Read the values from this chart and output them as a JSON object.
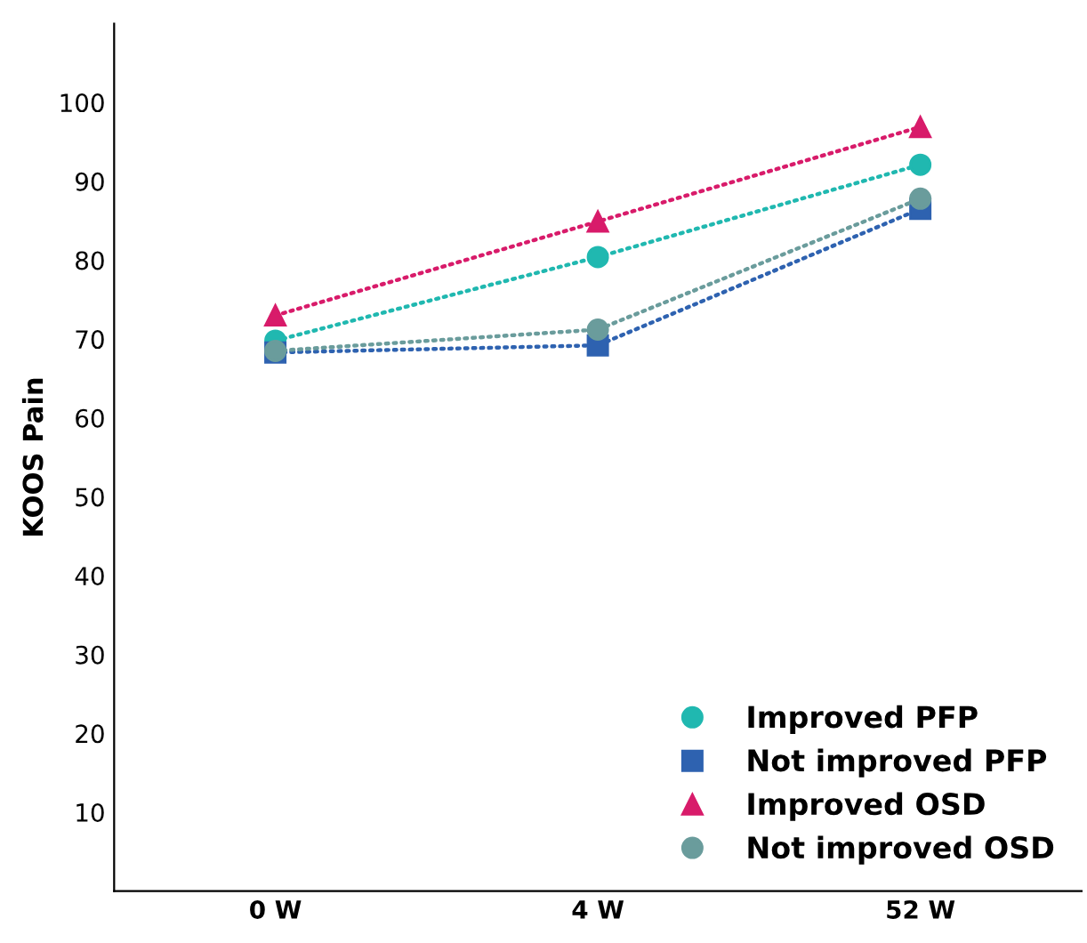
{
  "chart_data": {
    "type": "line",
    "ylabel": "KOOS Pain",
    "categories": [
      "0 W",
      "4 W",
      "52 W"
    ],
    "series": [
      {
        "name": "Improved PFP",
        "color": "#20b8b0",
        "marker": "circle",
        "values": [
          69.8,
          80.4,
          92.1
        ]
      },
      {
        "name": "Not improved PFP",
        "color": "#2e62b0",
        "marker": "square",
        "values": [
          68.3,
          69.2,
          86.5
        ]
      },
      {
        "name": "Improved OSD",
        "color": "#d81b6a",
        "marker": "triangle",
        "values": [
          73,
          84.9,
          96.9
        ]
      },
      {
        "name": "Not improved OSD",
        "color": "#6a9c9c",
        "marker": "circle",
        "values": [
          68.5,
          71.2,
          87.8
        ]
      }
    ],
    "line_style": "dotted",
    "ylim": [
      0,
      110
    ],
    "yticks": [
      10,
      20,
      30,
      40,
      50,
      60,
      70,
      80,
      90,
      100
    ],
    "grid": false,
    "legend": "bottom right"
  }
}
